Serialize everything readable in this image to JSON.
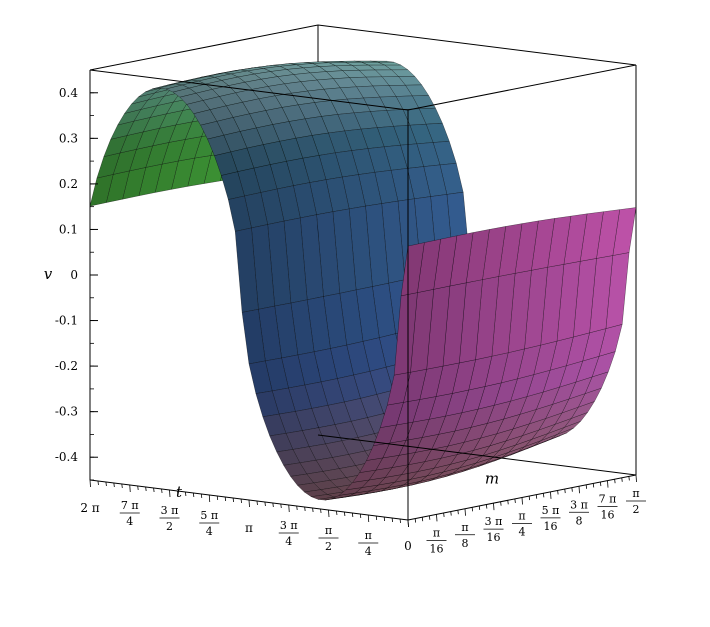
{
  "chart_data": {
    "type": "surface3d",
    "title": "",
    "zlabel": "v",
    "xlabel": "t",
    "ylabel": "m",
    "zlim": [
      -0.45,
      0.45
    ],
    "xlim": [
      0,
      6.283185
    ],
    "ylim": [
      0,
      1.570796
    ],
    "z_ticks": [
      {
        "value": 0.4,
        "label": "0.4"
      },
      {
        "value": 0.3,
        "label": "0.3"
      },
      {
        "value": 0.2,
        "label": "0.2"
      },
      {
        "value": 0.1,
        "label": "0.1"
      },
      {
        "value": 0,
        "label": "0"
      },
      {
        "value": -0.1,
        "label": "-0.1"
      },
      {
        "value": -0.2,
        "label": "-0.2"
      },
      {
        "value": -0.3,
        "label": "-0.3"
      },
      {
        "value": -0.4,
        "label": "-0.4"
      }
    ],
    "t_ticks": [
      {
        "value": 6.283185,
        "num": "2 π",
        "den": ""
      },
      {
        "value": 5.497787,
        "num": "7 π",
        "den": "4"
      },
      {
        "value": 4.712389,
        "num": "3 π",
        "den": "2"
      },
      {
        "value": 3.926991,
        "num": "5 π",
        "den": "4"
      },
      {
        "value": 3.141593,
        "num": "π",
        "den": ""
      },
      {
        "value": 2.356194,
        "num": "3 π",
        "den": "4"
      },
      {
        "value": 1.570796,
        "num": "π",
        "den": "2"
      },
      {
        "value": 0.785398,
        "num": "π",
        "den": "4"
      }
    ],
    "m_ticks": [
      {
        "value": 0,
        "num": "0",
        "den": ""
      },
      {
        "value": 0.19635,
        "num": "π",
        "den": "16"
      },
      {
        "value": 0.392699,
        "num": "π",
        "den": "8"
      },
      {
        "value": 0.589049,
        "num": "3 π",
        "den": "16"
      },
      {
        "value": 0.785398,
        "num": "π",
        "den": "4"
      },
      {
        "value": 0.981748,
        "num": "5 π",
        "den": "16"
      },
      {
        "value": 1.178097,
        "num": "3 π",
        "den": "8"
      },
      {
        "value": 1.374447,
        "num": "7 π",
        "den": "16"
      },
      {
        "value": 1.570796,
        "num": "π",
        "den": "2"
      }
    ],
    "surface": {
      "grid_t": 46,
      "grid_m": 14,
      "amplitude_at_m0": 0.43,
      "amplitude_at_m_max": 0.39
    },
    "colors": {
      "left": "#3f9a35",
      "mid": "#2e4f88",
      "right": "#b04a9a",
      "bottom": "#8f5a3a",
      "top_front": "#7fd8d6",
      "top_back": "#d8a8e0"
    }
  }
}
